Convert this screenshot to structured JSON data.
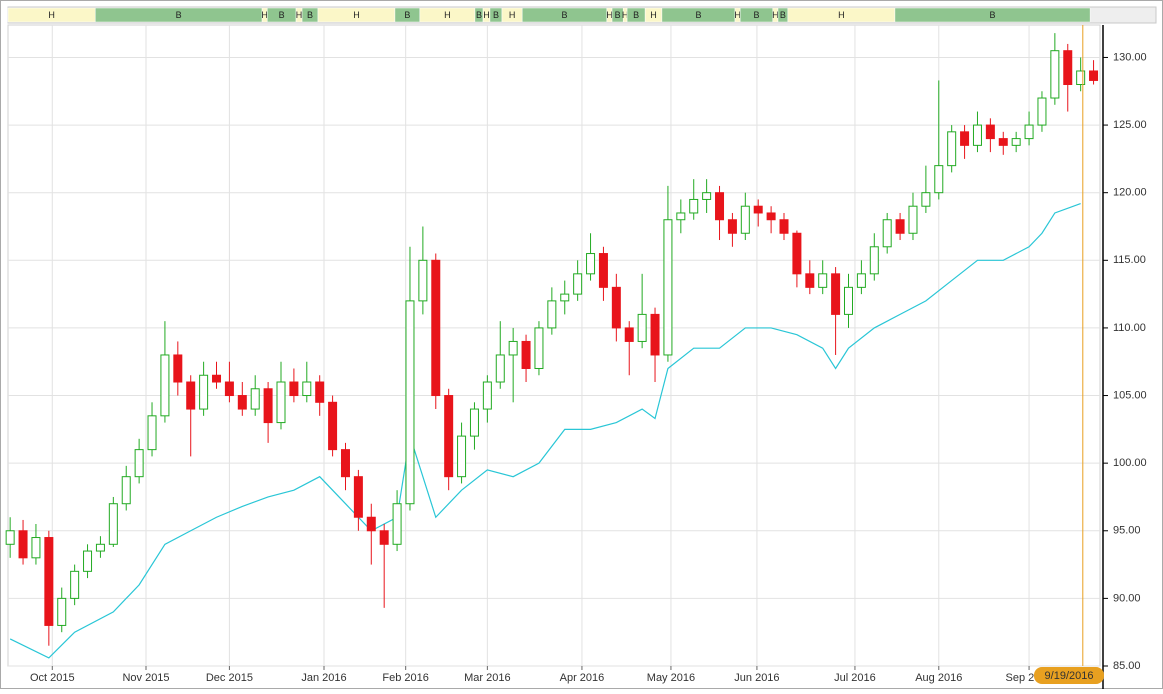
{
  "chart_data": {
    "type": "candlestick",
    "x": [
      0,
      3,
      6,
      9,
      12,
      15,
      18,
      21,
      24,
      27,
      30,
      33,
      36,
      39,
      42,
      45,
      48,
      51,
      54,
      57,
      60,
      63,
      66,
      69,
      72,
      75,
      78,
      81,
      84,
      87,
      90,
      93,
      96,
      99,
      102,
      105,
      108,
      111,
      114,
      117,
      120,
      123,
      126,
      129,
      132,
      135,
      138,
      141,
      144,
      147,
      150,
      153,
      156,
      159,
      162,
      165,
      168,
      171,
      174,
      177,
      180,
      183,
      186,
      189,
      192,
      195,
      198,
      201,
      204,
      207,
      210,
      213,
      216,
      219,
      222,
      225,
      228,
      231,
      234,
      237,
      240,
      243,
      246,
      249,
      252
    ],
    "ohlc": [
      [
        94,
        96,
        93,
        95
      ],
      [
        95,
        95.8,
        92.5,
        93
      ],
      [
        93,
        95.5,
        92.5,
        94.5
      ],
      [
        94.5,
        95,
        86.5,
        88
      ],
      [
        88,
        90.8,
        87.5,
        90
      ],
      [
        90,
        92.5,
        89.5,
        92
      ],
      [
        92,
        94,
        91.5,
        93.5
      ],
      [
        93.5,
        94.6,
        93,
        94
      ],
      [
        94,
        97.5,
        93.8,
        97
      ],
      [
        97,
        99.8,
        96.5,
        99
      ],
      [
        99,
        101.8,
        98.5,
        101
      ],
      [
        101,
        104.5,
        100.5,
        103.5
      ],
      [
        103.5,
        110.5,
        103,
        108
      ],
      [
        108,
        109,
        105,
        106
      ],
      [
        106,
        106.5,
        100.5,
        104
      ],
      [
        104,
        107.5,
        103.5,
        106.5
      ],
      [
        106.5,
        107.5,
        105.5,
        106
      ],
      [
        106,
        107.5,
        104.5,
        105
      ],
      [
        105,
        106,
        103.5,
        104
      ],
      [
        104,
        106.5,
        103.5,
        105.5
      ],
      [
        105.5,
        106,
        101.5,
        103
      ],
      [
        103,
        107.5,
        102.5,
        106
      ],
      [
        106,
        107,
        104.5,
        105
      ],
      [
        105,
        107.5,
        104.5,
        106
      ],
      [
        106,
        106.5,
        103.5,
        104.5
      ],
      [
        104.5,
        105,
        100.5,
        101
      ],
      [
        101,
        101.5,
        98,
        99
      ],
      [
        99,
        99.5,
        95,
        96
      ],
      [
        96,
        97,
        92.5,
        95
      ],
      [
        95,
        95.5,
        89.3,
        94
      ],
      [
        94,
        98,
        93.5,
        97
      ],
      [
        97,
        116,
        96.5,
        112
      ],
      [
        112,
        117.5,
        111,
        115
      ],
      [
        115,
        115.5,
        104,
        105
      ],
      [
        105,
        105.5,
        98,
        99
      ],
      [
        99,
        103,
        98.5,
        102
      ],
      [
        102,
        104.5,
        101,
        104
      ],
      [
        104,
        106.5,
        103,
        106
      ],
      [
        106,
        110.5,
        105.5,
        108
      ],
      [
        108,
        110,
        104.5,
        109
      ],
      [
        109,
        109.5,
        106,
        107
      ],
      [
        107,
        110.5,
        106.5,
        110
      ],
      [
        110,
        113,
        109.5,
        112
      ],
      [
        112,
        113.5,
        111,
        112.5
      ],
      [
        112.5,
        115,
        112,
        114
      ],
      [
        114,
        117,
        113.5,
        115.5
      ],
      [
        115.5,
        116,
        112,
        113
      ],
      [
        113,
        114,
        109,
        110
      ],
      [
        110,
        110.5,
        106.5,
        109
      ],
      [
        109,
        114,
        108.5,
        111
      ],
      [
        111,
        111.5,
        106,
        108
      ],
      [
        108,
        120.5,
        107.5,
        118
      ],
      [
        118,
        119.5,
        117,
        118.5
      ],
      [
        118.5,
        121,
        118,
        119.5
      ],
      [
        119.5,
        121,
        118.5,
        120
      ],
      [
        120,
        120.5,
        116.5,
        118
      ],
      [
        118,
        118.5,
        116,
        117
      ],
      [
        117,
        120,
        116.5,
        119
      ],
      [
        119,
        119.5,
        117.5,
        118.5
      ],
      [
        118.5,
        119,
        117,
        118
      ],
      [
        118,
        118.5,
        116.5,
        117
      ],
      [
        117,
        117.2,
        113,
        114
      ],
      [
        114,
        115,
        112.5,
        113
      ],
      [
        113,
        115,
        112.5,
        114
      ],
      [
        114,
        114.5,
        108,
        111
      ],
      [
        111,
        114,
        110,
        113
      ],
      [
        113,
        115,
        112.5,
        114
      ],
      [
        114,
        117,
        113.5,
        116
      ],
      [
        116,
        118.5,
        115.5,
        118
      ],
      [
        118,
        118.5,
        116.5,
        117
      ],
      [
        117,
        120,
        116.5,
        119
      ],
      [
        119,
        122,
        118.5,
        120
      ],
      [
        120,
        128.3,
        119.5,
        122
      ],
      [
        122,
        125,
        121.5,
        124.5
      ],
      [
        124.5,
        125,
        122.5,
        123.5
      ],
      [
        123.5,
        126,
        123,
        125
      ],
      [
        125,
        125.5,
        123,
        124
      ],
      [
        124,
        124.5,
        122.8,
        123.5
      ],
      [
        123.5,
        124.5,
        123,
        124
      ],
      [
        124,
        126,
        123.5,
        125
      ],
      [
        125,
        127.5,
        124.5,
        127
      ],
      [
        127,
        131.8,
        126.5,
        130.5
      ],
      [
        130.5,
        131,
        126,
        128
      ],
      [
        128,
        130,
        127.5,
        129
      ],
      [
        129,
        129.8,
        128,
        128.3
      ]
    ],
    "up_color": "#22aa22",
    "down_color": "#e8141b",
    "comparison_line": {
      "color": "#29c6d6",
      "x": [
        0,
        9,
        15,
        24,
        30,
        36,
        42,
        48,
        54,
        60,
        66,
        72,
        78,
        84,
        90,
        93,
        99,
        105,
        111,
        117,
        123,
        129,
        135,
        141,
        147,
        150,
        153,
        159,
        165,
        171,
        177,
        183,
        189,
        192,
        195,
        201,
        207,
        213,
        219,
        225,
        231,
        237,
        240,
        243,
        249
      ],
      "values": [
        87,
        85.6,
        87.5,
        89,
        91,
        94,
        95,
        96,
        96.8,
        97.5,
        98,
        99,
        97,
        95,
        96,
        102,
        96,
        98,
        99.5,
        99,
        100,
        102.5,
        102.5,
        103,
        104,
        103.3,
        107,
        108.5,
        108.5,
        110,
        110,
        109.5,
        108.5,
        107,
        108.5,
        110,
        111,
        112,
        113.5,
        115,
        115,
        116,
        117,
        118.5,
        119.2
      ]
    },
    "xlim": [
      -0.5,
      253.5
    ],
    "xticks": [
      {
        "value": 9.8,
        "label": "Oct 2015"
      },
      {
        "value": 31.6,
        "label": "Nov 2015"
      },
      {
        "value": 51,
        "label": "Dec 2015"
      },
      {
        "value": 73,
        "label": "Jan 2016"
      },
      {
        "value": 92,
        "label": "Feb 2016"
      },
      {
        "value": 111,
        "label": "Mar 2016"
      },
      {
        "value": 133,
        "label": "Apr 2016"
      },
      {
        "value": 153.7,
        "label": "May 2016"
      },
      {
        "value": 173.7,
        "label": "Jun 2016"
      },
      {
        "value": 196.5,
        "label": "Jul 2016"
      },
      {
        "value": 216,
        "label": "Aug 2016"
      },
      {
        "value": 237,
        "label": "Sep 2016"
      }
    ],
    "ylim": [
      85,
      132.4
    ],
    "yticks": [
      {
        "value": 85,
        "label": "85.00"
      },
      {
        "value": 90,
        "label": "90.00"
      },
      {
        "value": 95,
        "label": "95.00"
      },
      {
        "value": 100,
        "label": "100.00"
      },
      {
        "value": 105,
        "label": "105.00"
      },
      {
        "value": 110,
        "label": "110.00"
      },
      {
        "value": 115,
        "label": "115.00"
      },
      {
        "value": 120,
        "label": "120.00"
      },
      {
        "value": 125,
        "label": "125.00"
      },
      {
        "value": 130,
        "label": "130.00"
      }
    ],
    "grid": true,
    "marker": {
      "x": 249.5,
      "label": "9/19/2016",
      "color": "#e8a020"
    },
    "regime_bands": {
      "labels": [
        "H",
        "B",
        "H",
        "B",
        "H",
        "B",
        "H",
        "B",
        "H",
        "B",
        "H",
        "B",
        "H",
        "B",
        "H",
        "B",
        "H",
        "B",
        "H",
        "B",
        "H",
        "B",
        "H",
        "B",
        "H",
        "B"
      ],
      "edges": [
        -0.5,
        19.8,
        58.6,
        59.8,
        66.5,
        67.9,
        71.6,
        89.5,
        95.3,
        108.1,
        110,
        111.6,
        114.4,
        119.1,
        138.8,
        140,
        142.6,
        143.5,
        147.7,
        151.6,
        168.6,
        169.8,
        177.4,
        178.6,
        180.9,
        205.8,
        251.2
      ],
      "colors": {
        "H": "#fbf7c8",
        "B": "#8fc58f"
      }
    }
  }
}
